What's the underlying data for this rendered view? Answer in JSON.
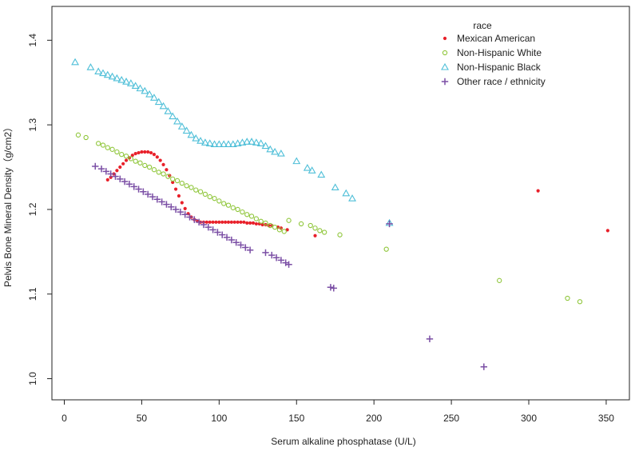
{
  "chart_data": {
    "type": "scatter",
    "title": "",
    "xlabel": "Serum alkaline phosphatase (U/L)",
    "ylabel": "Pelvis Bone Mineral Density（g/cm2）",
    "xlim": [
      -8,
      365
    ],
    "ylim": [
      0.975,
      1.44
    ],
    "xticks": [
      0,
      50,
      100,
      150,
      200,
      250,
      300,
      350
    ],
    "yticks": [
      1.0,
      1.1,
      1.2,
      1.3,
      1.4
    ],
    "grid": false,
    "legend": {
      "title": "race",
      "position": "top-right"
    },
    "series": [
      {
        "name": "Mexican American",
        "marker": "dot",
        "color": "#e8202a",
        "points": [
          [
            28,
            1.235
          ],
          [
            30,
            1.238
          ],
          [
            32,
            1.242
          ],
          [
            34,
            1.246
          ],
          [
            36,
            1.25
          ],
          [
            38,
            1.254
          ],
          [
            40,
            1.258
          ],
          [
            42,
            1.261
          ],
          [
            44,
            1.264
          ],
          [
            46,
            1.266
          ],
          [
            48,
            1.267
          ],
          [
            50,
            1.268
          ],
          [
            52,
            1.268
          ],
          [
            54,
            1.268
          ],
          [
            56,
            1.267
          ],
          [
            58,
            1.265
          ],
          [
            60,
            1.262
          ],
          [
            62,
            1.258
          ],
          [
            64,
            1.253
          ],
          [
            66,
            1.247
          ],
          [
            68,
            1.24
          ],
          [
            70,
            1.232
          ],
          [
            72,
            1.224
          ],
          [
            74,
            1.216
          ],
          [
            76,
            1.208
          ],
          [
            78,
            1.201
          ],
          [
            80,
            1.195
          ],
          [
            82,
            1.191
          ],
          [
            84,
            1.188
          ],
          [
            86,
            1.186
          ],
          [
            88,
            1.185
          ],
          [
            90,
            1.185
          ],
          [
            92,
            1.185
          ],
          [
            94,
            1.185
          ],
          [
            96,
            1.185
          ],
          [
            98,
            1.185
          ],
          [
            100,
            1.185
          ],
          [
            102,
            1.185
          ],
          [
            104,
            1.185
          ],
          [
            106,
            1.185
          ],
          [
            108,
            1.185
          ],
          [
            110,
            1.185
          ],
          [
            112,
            1.185
          ],
          [
            114,
            1.185
          ],
          [
            116,
            1.185
          ],
          [
            118,
            1.184
          ],
          [
            120,
            1.184
          ],
          [
            122,
            1.184
          ],
          [
            124,
            1.183
          ],
          [
            126,
            1.183
          ],
          [
            128,
            1.182
          ],
          [
            130,
            1.182
          ],
          [
            132,
            1.181
          ],
          [
            134,
            1.181
          ],
          [
            138,
            1.179
          ],
          [
            140,
            1.178
          ],
          [
            144,
            1.176
          ],
          [
            162,
            1.169
          ],
          [
            306,
            1.222
          ],
          [
            351,
            1.175
          ]
        ]
      },
      {
        "name": "Non-Hispanic White",
        "marker": "circle",
        "color": "#8fc63a",
        "points": [
          [
            9,
            1.288
          ],
          [
            14,
            1.285
          ],
          [
            22,
            1.278
          ],
          [
            25,
            1.276
          ],
          [
            28,
            1.273
          ],
          [
            31,
            1.271
          ],
          [
            34,
            1.268
          ],
          [
            37,
            1.265
          ],
          [
            40,
            1.263
          ],
          [
            43,
            1.26
          ],
          [
            46,
            1.257
          ],
          [
            49,
            1.255
          ],
          [
            52,
            1.252
          ],
          [
            55,
            1.25
          ],
          [
            58,
            1.247
          ],
          [
            61,
            1.244
          ],
          [
            64,
            1.242
          ],
          [
            67,
            1.239
          ],
          [
            70,
            1.236
          ],
          [
            73,
            1.234
          ],
          [
            76,
            1.231
          ],
          [
            79,
            1.228
          ],
          [
            82,
            1.226
          ],
          [
            85,
            1.223
          ],
          [
            88,
            1.221
          ],
          [
            91,
            1.218
          ],
          [
            94,
            1.215
          ],
          [
            97,
            1.213
          ],
          [
            100,
            1.21
          ],
          [
            103,
            1.207
          ],
          [
            106,
            1.205
          ],
          [
            109,
            1.202
          ],
          [
            112,
            1.2
          ],
          [
            115,
            1.197
          ],
          [
            118,
            1.194
          ],
          [
            121,
            1.192
          ],
          [
            124,
            1.189
          ],
          [
            127,
            1.186
          ],
          [
            130,
            1.184
          ],
          [
            133,
            1.181
          ],
          [
            136,
            1.179
          ],
          [
            139,
            1.176
          ],
          [
            142,
            1.174
          ],
          [
            145,
            1.187
          ],
          [
            153,
            1.183
          ],
          [
            159,
            1.181
          ],
          [
            162,
            1.178
          ],
          [
            165,
            1.175
          ],
          [
            168,
            1.173
          ],
          [
            178,
            1.17
          ],
          [
            208,
            1.153
          ],
          [
            281,
            1.116
          ],
          [
            325,
            1.095
          ],
          [
            333,
            1.091
          ]
        ]
      },
      {
        "name": "Non-Hispanic Black",
        "marker": "triangle",
        "color": "#4fbfd8",
        "points": [
          [
            7,
            1.374
          ],
          [
            17,
            1.368
          ],
          [
            22,
            1.363
          ],
          [
            25,
            1.361
          ],
          [
            28,
            1.359
          ],
          [
            31,
            1.357
          ],
          [
            34,
            1.355
          ],
          [
            37,
            1.353
          ],
          [
            40,
            1.351
          ],
          [
            43,
            1.349
          ],
          [
            46,
            1.346
          ],
          [
            49,
            1.343
          ],
          [
            52,
            1.34
          ],
          [
            55,
            1.336
          ],
          [
            58,
            1.332
          ],
          [
            61,
            1.327
          ],
          [
            64,
            1.322
          ],
          [
            67,
            1.316
          ],
          [
            70,
            1.31
          ],
          [
            73,
            1.304
          ],
          [
            76,
            1.298
          ],
          [
            79,
            1.293
          ],
          [
            82,
            1.288
          ],
          [
            85,
            1.284
          ],
          [
            88,
            1.281
          ],
          [
            91,
            1.279
          ],
          [
            94,
            1.278
          ],
          [
            97,
            1.277
          ],
          [
            100,
            1.277
          ],
          [
            103,
            1.277
          ],
          [
            106,
            1.277
          ],
          [
            109,
            1.277
          ],
          [
            112,
            1.278
          ],
          [
            115,
            1.279
          ],
          [
            118,
            1.28
          ],
          [
            121,
            1.28
          ],
          [
            124,
            1.279
          ],
          [
            127,
            1.278
          ],
          [
            130,
            1.275
          ],
          [
            133,
            1.271
          ],
          [
            136,
            1.268
          ],
          [
            140,
            1.266
          ],
          [
            150,
            1.257
          ],
          [
            157,
            1.249
          ],
          [
            160,
            1.246
          ],
          [
            166,
            1.241
          ],
          [
            175,
            1.226
          ],
          [
            182,
            1.219
          ],
          [
            186,
            1.213
          ],
          [
            210,
            1.184
          ]
        ]
      },
      {
        "name": "Other race / ethnicity",
        "marker": "plus",
        "color": "#7b4fa5",
        "points": [
          [
            20,
            1.251
          ],
          [
            24,
            1.248
          ],
          [
            27,
            1.245
          ],
          [
            30,
            1.242
          ],
          [
            33,
            1.239
          ],
          [
            36,
            1.236
          ],
          [
            39,
            1.233
          ],
          [
            42,
            1.23
          ],
          [
            45,
            1.227
          ],
          [
            48,
            1.224
          ],
          [
            51,
            1.221
          ],
          [
            54,
            1.218
          ],
          [
            57,
            1.215
          ],
          [
            60,
            1.212
          ],
          [
            63,
            1.209
          ],
          [
            66,
            1.206
          ],
          [
            69,
            1.203
          ],
          [
            72,
            1.2
          ],
          [
            75,
            1.197
          ],
          [
            78,
            1.194
          ],
          [
            81,
            1.191
          ],
          [
            84,
            1.188
          ],
          [
            87,
            1.185
          ],
          [
            90,
            1.182
          ],
          [
            93,
            1.179
          ],
          [
            96,
            1.176
          ],
          [
            99,
            1.173
          ],
          [
            102,
            1.17
          ],
          [
            105,
            1.167
          ],
          [
            108,
            1.164
          ],
          [
            111,
            1.161
          ],
          [
            114,
            1.158
          ],
          [
            117,
            1.155
          ],
          [
            120,
            1.152
          ],
          [
            130,
            1.149
          ],
          [
            134,
            1.146
          ],
          [
            137,
            1.143
          ],
          [
            140,
            1.14
          ],
          [
            143,
            1.137
          ],
          [
            145,
            1.135
          ],
          [
            172,
            1.108
          ],
          [
            174,
            1.107
          ],
          [
            210,
            1.183
          ],
          [
            236,
            1.047
          ],
          [
            271,
            1.014
          ]
        ]
      }
    ]
  },
  "colors": {
    "axis": "#222222",
    "background": "#ffffff"
  }
}
